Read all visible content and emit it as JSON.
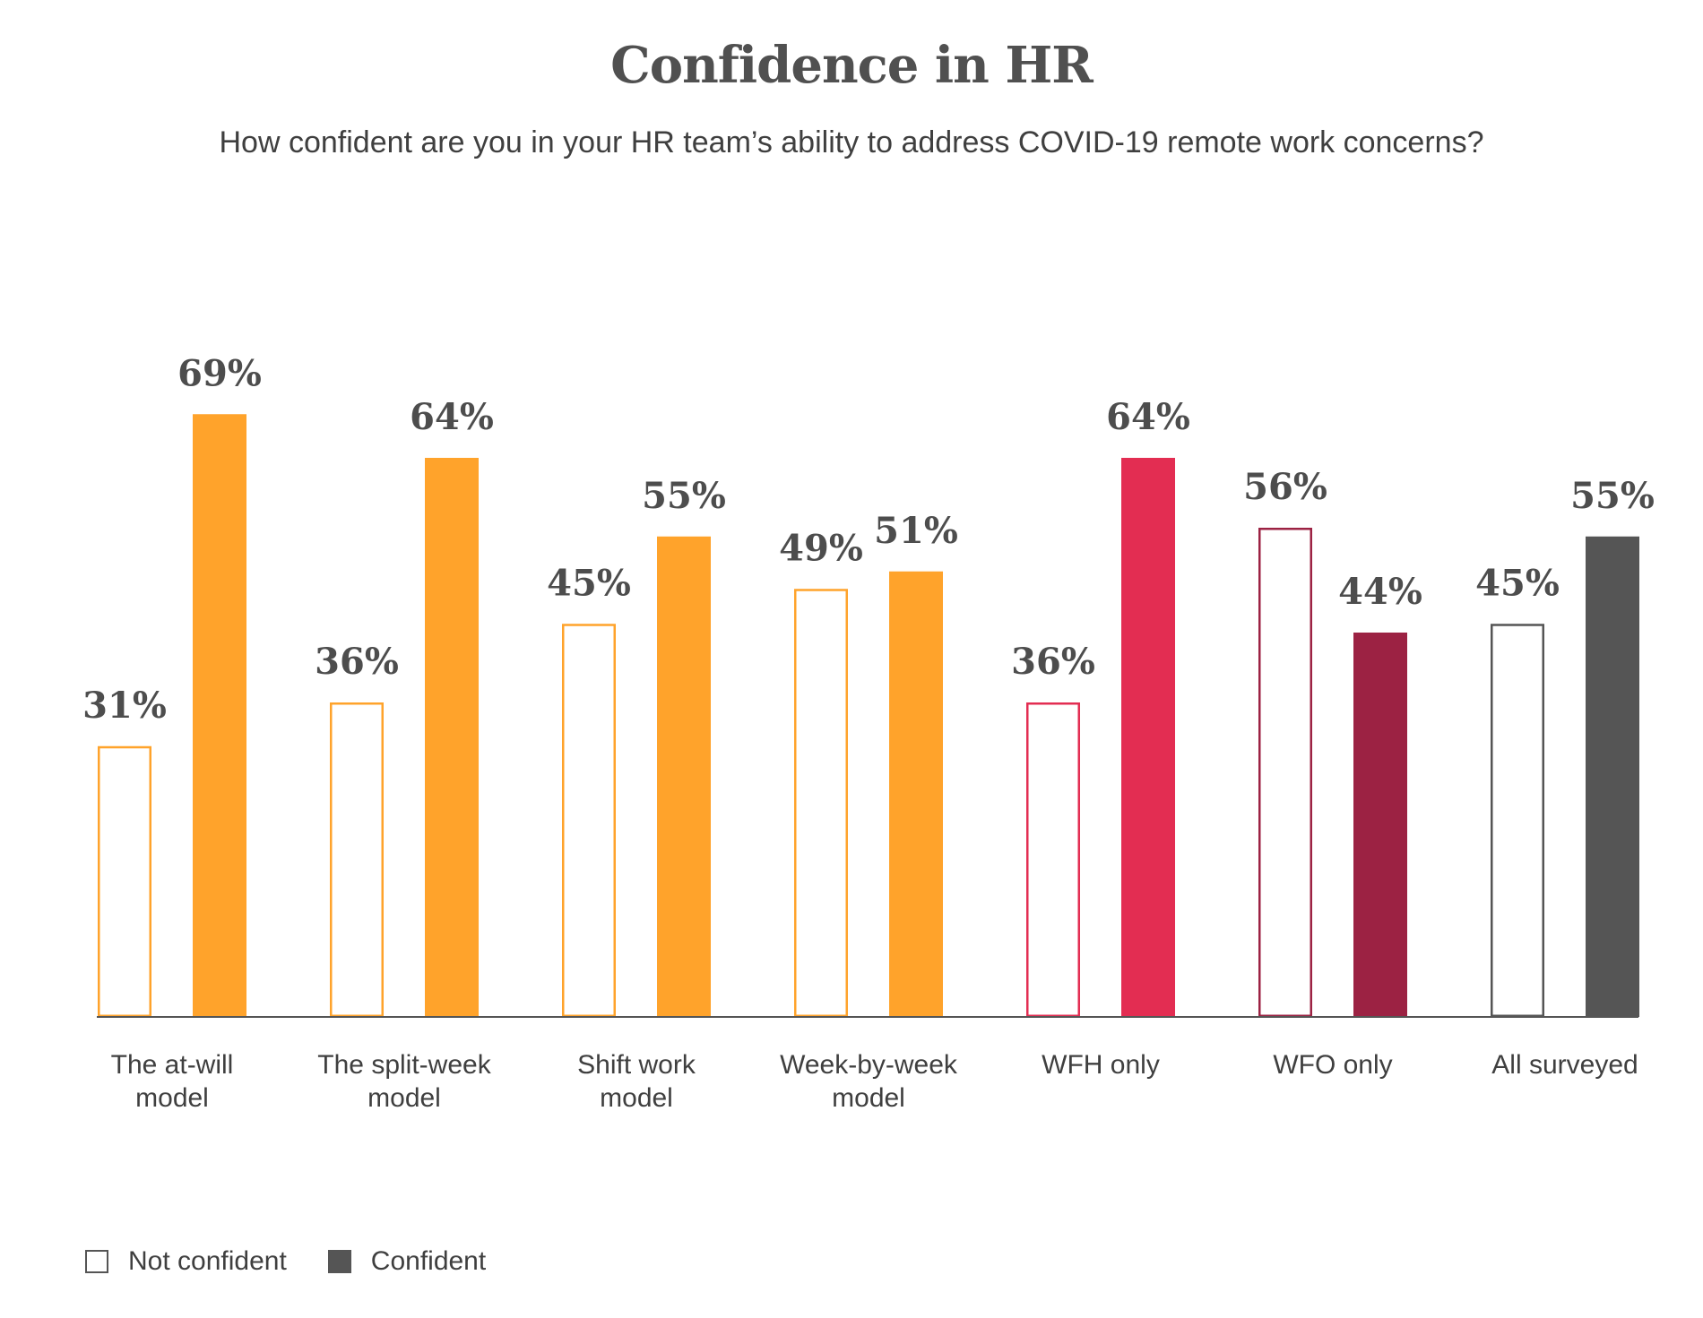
{
  "chart_data": {
    "type": "bar",
    "title": "Confidence in HR",
    "subtitle": "How confident are you in your HR team’s ability to address COVID-19 remote work concerns?",
    "categories": [
      {
        "lines": [
          "The at-will",
          "model"
        ],
        "color": "#FFA32B"
      },
      {
        "lines": [
          "The split-week",
          "model"
        ],
        "color": "#FFA32B"
      },
      {
        "lines": [
          "Shift work",
          "model"
        ],
        "color": "#FFA32B"
      },
      {
        "lines": [
          "Week-by-week",
          "model"
        ],
        "color": "#FFA32B"
      },
      {
        "lines": [
          "WFH only"
        ],
        "color": "#E32D52"
      },
      {
        "lines": [
          "WFO only"
        ],
        "color": "#9C2243"
      },
      {
        "lines": [
          "All surveyed"
        ],
        "color": "#555555"
      }
    ],
    "series": [
      {
        "name": "Not confident",
        "style": "outline",
        "values": [
          31,
          36,
          45,
          49,
          36,
          56,
          45
        ],
        "labels": [
          "31%",
          "36%",
          "45%",
          "49%",
          "36%",
          "56%",
          "45%"
        ]
      },
      {
        "name": "Confident",
        "style": "filled",
        "values": [
          69,
          64,
          55,
          51,
          64,
          44,
          55
        ],
        "labels": [
          "69%",
          "64%",
          "55%",
          "51%",
          "64%",
          "44%",
          "55%"
        ]
      }
    ],
    "ylim": [
      0,
      100
    ],
    "grid": false,
    "legend_position": "bottom-left"
  }
}
